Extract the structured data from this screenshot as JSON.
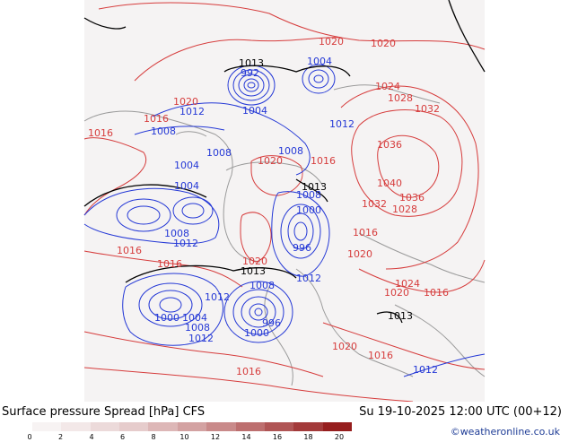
{
  "title_left": "Surface pressure Spread [hPa] CFS",
  "title_right": "Su 19-10-2025 12:00 UTC (00+12)",
  "credit": "©weatheronline.co.uk",
  "colorbar": {
    "ticks": [
      "0",
      "2",
      "4",
      "6",
      "8",
      "10",
      "12",
      "14",
      "16",
      "18",
      "20"
    ],
    "colors": [
      "#f7f3f3",
      "#f3e8e8",
      "#ecdada",
      "#e6cccc",
      "#ddb7b7",
      "#d3a2a2",
      "#c98a8a",
      "#bd6f6f",
      "#b05555",
      "#a33a3a",
      "#961e1e"
    ]
  },
  "contour_labels": {
    "red": [
      "1020",
      "1020",
      "1020",
      "1016",
      "1016",
      "1024",
      "1028",
      "1032",
      "1036",
      "1040",
      "1036",
      "1028",
      "1032",
      "1020",
      "1016",
      "1016",
      "1020",
      "1020",
      "1024",
      "1020",
      "1016",
      "1016",
      "1020",
      "1016",
      "1016",
      "1016"
    ],
    "blue": [
      "992",
      "1004",
      "1012",
      "1004",
      "1008",
      "1008",
      "1004",
      "1004",
      "1008",
      "1012",
      "1012",
      "1008",
      "1008",
      "1000",
      "996",
      "1012",
      "1008",
      "1012",
      "1000",
      "1004",
      "1008",
      "1012",
      "996",
      "1000",
      "1012"
    ],
    "black": [
      "1013",
      "1013",
      "1013",
      "1013"
    ]
  },
  "colors": {
    "land": "#f5f3f3",
    "isobar_high": "#d63c3c",
    "isobar_low": "#2438d6",
    "isobar_1013": "#000000",
    "coast": "#9a9a9a"
  }
}
